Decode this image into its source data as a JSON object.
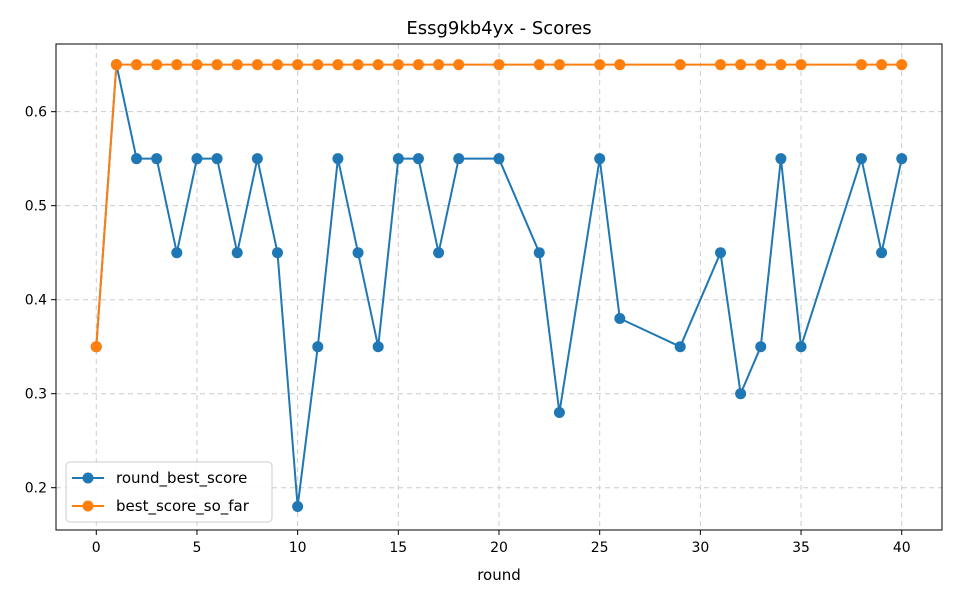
{
  "chart_data": {
    "type": "line",
    "title": "Essg9kb4yx - Scores",
    "xlabel": "round",
    "ylabel": "",
    "xlim": [
      -2,
      42
    ],
    "ylim": [
      0.155,
      0.672
    ],
    "xticks": [
      0,
      5,
      10,
      15,
      20,
      25,
      30,
      35,
      40
    ],
    "yticks": [
      0.2,
      0.3,
      0.4,
      0.5,
      0.6
    ],
    "grid": true,
    "legend_position": "lower-left",
    "series": [
      {
        "name": "round_best_score",
        "color": "#1f77b4",
        "x": [
          0,
          1,
          2,
          3,
          4,
          5,
          6,
          7,
          8,
          9,
          10,
          11,
          12,
          13,
          14,
          15,
          16,
          17,
          18,
          20,
          22,
          23,
          25,
          26,
          29,
          31,
          32,
          33,
          34,
          35,
          38,
          39,
          40
        ],
        "y": [
          0.35,
          0.65,
          0.55,
          0.55,
          0.45,
          0.55,
          0.55,
          0.45,
          0.55,
          0.45,
          0.18,
          0.35,
          0.55,
          0.45,
          0.35,
          0.55,
          0.55,
          0.45,
          0.55,
          0.55,
          0.45,
          0.28,
          0.55,
          0.38,
          0.35,
          0.45,
          0.3,
          0.35,
          0.55,
          0.35,
          0.55,
          0.45,
          0.55
        ]
      },
      {
        "name": "best_score_so_far",
        "color": "#ff7f0e",
        "x": [
          0,
          1,
          2,
          3,
          4,
          5,
          6,
          7,
          8,
          9,
          10,
          11,
          12,
          13,
          14,
          15,
          16,
          17,
          18,
          20,
          22,
          23,
          25,
          26,
          29,
          31,
          32,
          33,
          34,
          35,
          38,
          39,
          40
        ],
        "y": [
          0.35,
          0.65,
          0.65,
          0.65,
          0.65,
          0.65,
          0.65,
          0.65,
          0.65,
          0.65,
          0.65,
          0.65,
          0.65,
          0.65,
          0.65,
          0.65,
          0.65,
          0.65,
          0.65,
          0.65,
          0.65,
          0.65,
          0.65,
          0.65,
          0.65,
          0.65,
          0.65,
          0.65,
          0.65,
          0.65,
          0.65,
          0.65,
          0.65
        ]
      }
    ]
  }
}
